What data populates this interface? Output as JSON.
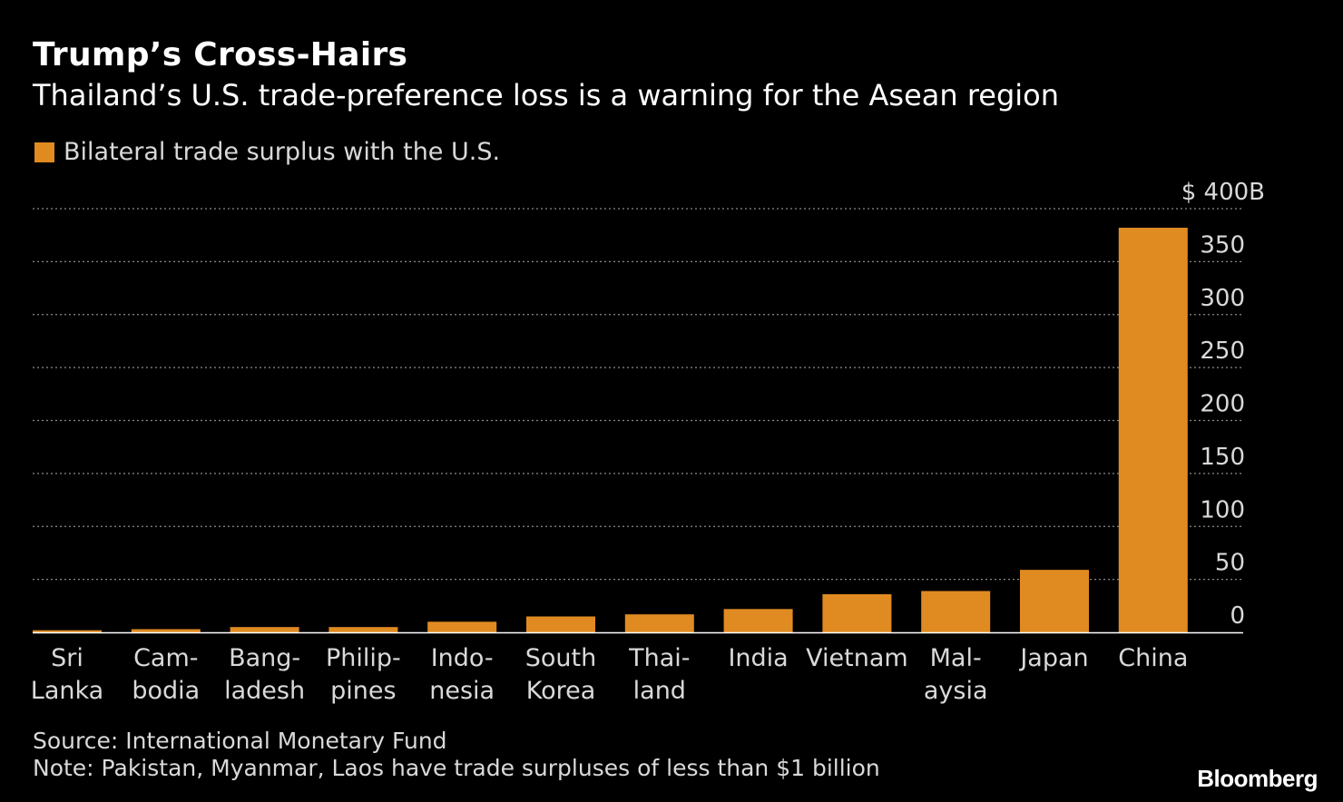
{
  "header": {
    "title": "Trump’s Cross-Hairs",
    "subtitle": "Thailand’s U.S. trade-preference loss is a warning for the Asean region"
  },
  "legend": {
    "label": "Bilateral trade surplus with the U.S.",
    "color": "#e08b22"
  },
  "chart_data": {
    "type": "bar",
    "categories": [
      [
        "Sri",
        "Lanka"
      ],
      [
        "Cam-",
        "bodia"
      ],
      [
        "Bang-",
        "ladesh"
      ],
      [
        "Philip-",
        "pines"
      ],
      [
        "Indo-",
        "nesia"
      ],
      [
        "South",
        "Korea"
      ],
      [
        "Thai-",
        "land"
      ],
      [
        "India"
      ],
      [
        "Vietnam"
      ],
      [
        "Mal-",
        "aysia"
      ],
      [
        "Japan"
      ],
      [
        "China"
      ]
    ],
    "series": [
      {
        "name": "Bilateral trade surplus with the U.S.",
        "values": [
          2,
          3,
          5,
          5,
          10,
          15,
          17,
          22,
          36,
          39,
          59,
          382
        ]
      }
    ],
    "ylim": [
      0,
      400
    ],
    "yticks": [
      {
        "value": 400,
        "label": "$ 400B"
      },
      {
        "value": 350,
        "label": "350"
      },
      {
        "value": 300,
        "label": "300"
      },
      {
        "value": 250,
        "label": "250"
      },
      {
        "value": 200,
        "label": "200"
      },
      {
        "value": 150,
        "label": "150"
      },
      {
        "value": 100,
        "label": "100"
      },
      {
        "value": 50,
        "label": "50"
      },
      {
        "value": 0,
        "label": "0"
      }
    ],
    "grid": true,
    "legend_position": "top-left",
    "bar_color": "#e08b22"
  },
  "footer": {
    "source": "Source: International Monetary Fund",
    "note": "Note: Pakistan, Myanmar, Laos have trade surpluses of less than $1 billion",
    "brand": "Bloomberg"
  }
}
